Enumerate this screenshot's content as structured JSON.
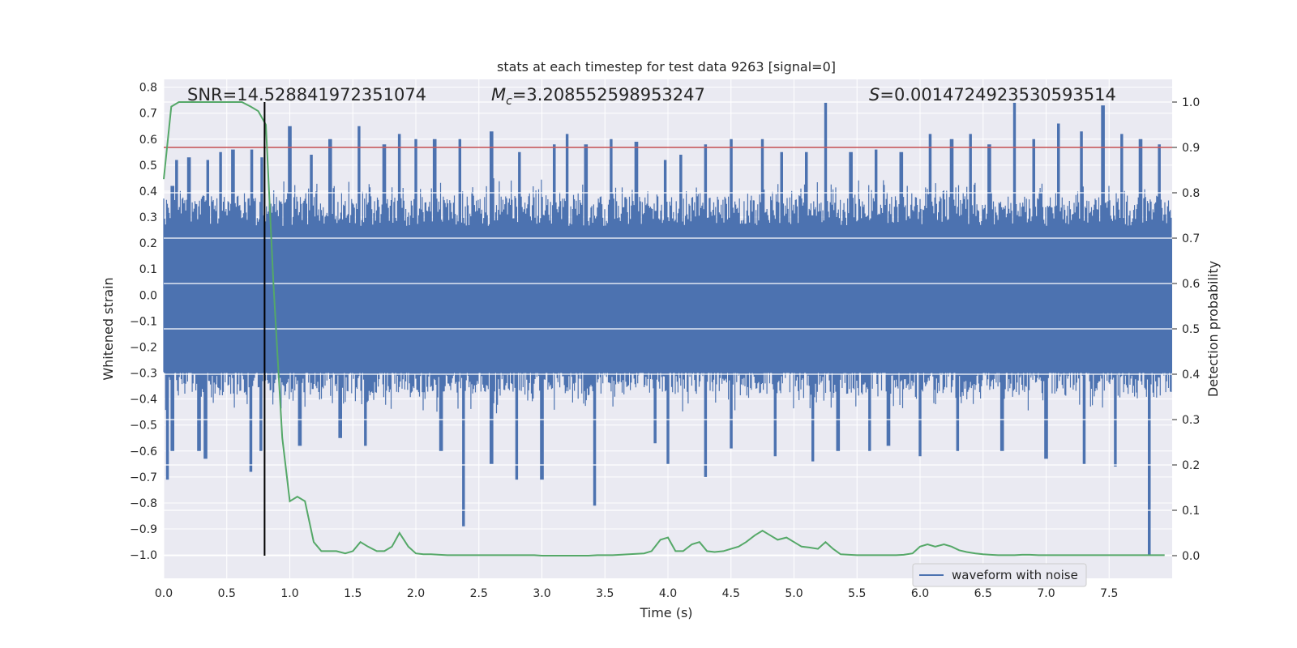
{
  "chart_data": {
    "type": "line",
    "title": "stats at each timestep for test data 9263 [signal=0]",
    "xlabel": "Time (s)",
    "ylabel": "Whitened strain",
    "y2label": "Detection probability",
    "xlim": [
      0.0,
      8.0
    ],
    "ylim": [
      -1.09,
      0.83
    ],
    "y2lim": [
      -0.05,
      1.05
    ],
    "xticks": [
      "0.0",
      "0.5",
      "1.0",
      "1.5",
      "2.0",
      "2.5",
      "3.0",
      "3.5",
      "4.0",
      "4.5",
      "5.0",
      "5.5",
      "6.0",
      "6.5",
      "7.0",
      "7.5"
    ],
    "yticks": [
      "0.8",
      "0.7",
      "0.6",
      "0.5",
      "0.4",
      "0.3",
      "0.2",
      "0.1",
      "0.0",
      "−0.1",
      "−0.2",
      "−0.3",
      "−0.4",
      "−0.5",
      "−0.6",
      "−0.7",
      "−0.8",
      "−0.9",
      "−1.0"
    ],
    "y2ticks": [
      "1.0",
      "0.9",
      "0.8",
      "0.7",
      "0.6",
      "0.5",
      "0.4",
      "0.3",
      "0.2",
      "0.1",
      "0.0"
    ],
    "grid": true,
    "legend_position": "lower-right",
    "annotations": {
      "snr": "SNR=14.528841972351074",
      "mc_symbol": "M",
      "mc_sub": "c",
      "mc_value": "=3.208552598953247",
      "s_symbol": "S",
      "s_value": "=0.0014724923530593514"
    },
    "threshold": {
      "value": 0.9,
      "axis": "right",
      "color": "#c44e52"
    },
    "marker_time": 0.8,
    "series": [
      {
        "name": "waveform with noise",
        "axis": "left",
        "color": "#4c72b0",
        "envelope": {
          "baseline_max": 0.38,
          "baseline_min": -0.38,
          "spike_max": [
            [
              0.07,
              0.42
            ],
            [
              0.1,
              0.52
            ],
            [
              0.2,
              0.53
            ],
            [
              0.35,
              0.52
            ],
            [
              0.45,
              0.55
            ],
            [
              0.55,
              0.56
            ],
            [
              0.7,
              0.56
            ],
            [
              0.78,
              0.53
            ],
            [
              1.0,
              0.65
            ],
            [
              1.17,
              0.54
            ],
            [
              1.32,
              0.6
            ],
            [
              1.55,
              0.65
            ],
            [
              1.75,
              0.58
            ],
            [
              1.87,
              0.62
            ],
            [
              2.0,
              0.6
            ],
            [
              2.15,
              0.6
            ],
            [
              2.35,
              0.6
            ],
            [
              2.6,
              0.63
            ],
            [
              2.82,
              0.55
            ],
            [
              3.1,
              0.58
            ],
            [
              3.2,
              0.62
            ],
            [
              3.35,
              0.58
            ],
            [
              3.55,
              0.6
            ],
            [
              3.75,
              0.59
            ],
            [
              3.98,
              0.52
            ],
            [
              4.1,
              0.54
            ],
            [
              4.3,
              0.58
            ],
            [
              4.5,
              0.6
            ],
            [
              4.75,
              0.6
            ],
            [
              4.9,
              0.55
            ],
            [
              5.1,
              0.55
            ],
            [
              5.25,
              0.74
            ],
            [
              5.45,
              0.55
            ],
            [
              5.65,
              0.56
            ],
            [
              5.85,
              0.55
            ],
            [
              6.08,
              0.62
            ],
            [
              6.25,
              0.6
            ],
            [
              6.4,
              0.62
            ],
            [
              6.55,
              0.58
            ],
            [
              6.75,
              0.74
            ],
            [
              6.9,
              0.6
            ],
            [
              7.1,
              0.66
            ],
            [
              7.28,
              0.63
            ],
            [
              7.45,
              0.73
            ],
            [
              7.6,
              0.62
            ],
            [
              7.75,
              0.6
            ],
            [
              7.9,
              0.58
            ]
          ],
          "spike_min": [
            [
              0.03,
              -0.71
            ],
            [
              0.07,
              -0.6
            ],
            [
              0.28,
              -0.6
            ],
            [
              0.33,
              -0.63
            ],
            [
              0.69,
              -0.68
            ],
            [
              0.77,
              -0.6
            ],
            [
              1.08,
              -0.58
            ],
            [
              1.4,
              -0.55
            ],
            [
              1.6,
              -0.58
            ],
            [
              2.2,
              -0.6
            ],
            [
              2.38,
              -0.89
            ],
            [
              2.6,
              -0.65
            ],
            [
              2.8,
              -0.71
            ],
            [
              3.0,
              -0.71
            ],
            [
              3.42,
              -0.81
            ],
            [
              3.9,
              -0.57
            ],
            [
              4.0,
              -0.65
            ],
            [
              4.3,
              -0.7
            ],
            [
              4.5,
              -0.59
            ],
            [
              4.85,
              -0.62
            ],
            [
              5.15,
              -0.64
            ],
            [
              5.35,
              -0.6
            ],
            [
              5.6,
              -0.6
            ],
            [
              5.75,
              -0.58
            ],
            [
              6.0,
              -0.62
            ],
            [
              6.3,
              -0.6
            ],
            [
              6.65,
              -0.6
            ],
            [
              7.0,
              -0.63
            ],
            [
              7.3,
              -0.65
            ],
            [
              7.55,
              -0.66
            ],
            [
              7.82,
              -1.0
            ]
          ]
        }
      },
      {
        "name": "",
        "axis": "right",
        "color": "#55a868",
        "x": [
          0.0,
          0.06,
          0.12,
          0.19,
          0.25,
          0.31,
          0.37,
          0.44,
          0.5,
          0.56,
          0.62,
          0.69,
          0.75,
          0.81,
          0.87,
          0.94,
          1.0,
          1.06,
          1.12,
          1.19,
          1.25,
          1.31,
          1.37,
          1.44,
          1.5,
          1.56,
          1.62,
          1.69,
          1.75,
          1.81,
          1.87,
          1.94,
          2.0,
          2.06,
          2.12,
          2.19,
          2.25,
          2.31,
          2.37,
          2.44,
          2.5,
          2.56,
          2.62,
          2.69,
          2.75,
          2.81,
          2.87,
          2.94,
          3.0,
          3.06,
          3.12,
          3.19,
          3.25,
          3.31,
          3.37,
          3.44,
          3.5,
          3.56,
          3.62,
          3.69,
          3.75,
          3.81,
          3.87,
          3.94,
          4.0,
          4.06,
          4.12,
          4.19,
          4.25,
          4.31,
          4.37,
          4.44,
          4.5,
          4.56,
          4.62,
          4.69,
          4.75,
          4.81,
          4.87,
          4.94,
          5.0,
          5.06,
          5.12,
          5.19,
          5.25,
          5.31,
          5.37,
          5.44,
          5.5,
          5.56,
          5.62,
          5.69,
          5.75,
          5.81,
          5.87,
          5.94,
          6.0,
          6.06,
          6.12,
          6.19,
          6.25,
          6.31,
          6.37,
          6.44,
          6.5,
          6.56,
          6.62,
          6.69,
          6.75,
          6.81,
          6.87,
          6.94,
          7.0,
          7.06,
          7.12,
          7.19,
          7.25,
          7.31,
          7.37,
          7.44,
          7.5,
          7.56,
          7.62,
          7.69,
          7.75,
          7.81,
          7.87,
          7.94
        ],
        "values": [
          0.83,
          0.99,
          1.0,
          1.0,
          1.0,
          1.0,
          1.0,
          1.0,
          1.0,
          1.0,
          1.0,
          0.99,
          0.98,
          0.95,
          0.6,
          0.26,
          0.12,
          0.13,
          0.12,
          0.03,
          0.01,
          0.01,
          0.01,
          0.005,
          0.01,
          0.03,
          0.02,
          0.01,
          0.01,
          0.02,
          0.05,
          0.02,
          0.005,
          0.003,
          0.003,
          0.002,
          0.001,
          0.001,
          0.001,
          0.001,
          0.001,
          0.001,
          0.001,
          0.001,
          0.001,
          0.001,
          0.001,
          0.001,
          0.0,
          0.0,
          0.0,
          0.0,
          0.0,
          0.0,
          0.0,
          0.001,
          0.001,
          0.001,
          0.002,
          0.003,
          0.004,
          0.005,
          0.01,
          0.035,
          0.04,
          0.01,
          0.01,
          0.025,
          0.03,
          0.01,
          0.008,
          0.01,
          0.015,
          0.02,
          0.03,
          0.045,
          0.055,
          0.045,
          0.035,
          0.04,
          0.03,
          0.02,
          0.018,
          0.015,
          0.03,
          0.015,
          0.003,
          0.002,
          0.001,
          0.001,
          0.001,
          0.001,
          0.001,
          0.001,
          0.002,
          0.005,
          0.02,
          0.025,
          0.02,
          0.025,
          0.02,
          0.012,
          0.008,
          0.005,
          0.003,
          0.002,
          0.001,
          0.001,
          0.001,
          0.002,
          0.002,
          0.001,
          0.001,
          0.001,
          0.001,
          0.001,
          0.001,
          0.001,
          0.001,
          0.001,
          0.001,
          0.001,
          0.001,
          0.001,
          0.001,
          0.001,
          0.001,
          0.001
        ]
      }
    ]
  }
}
